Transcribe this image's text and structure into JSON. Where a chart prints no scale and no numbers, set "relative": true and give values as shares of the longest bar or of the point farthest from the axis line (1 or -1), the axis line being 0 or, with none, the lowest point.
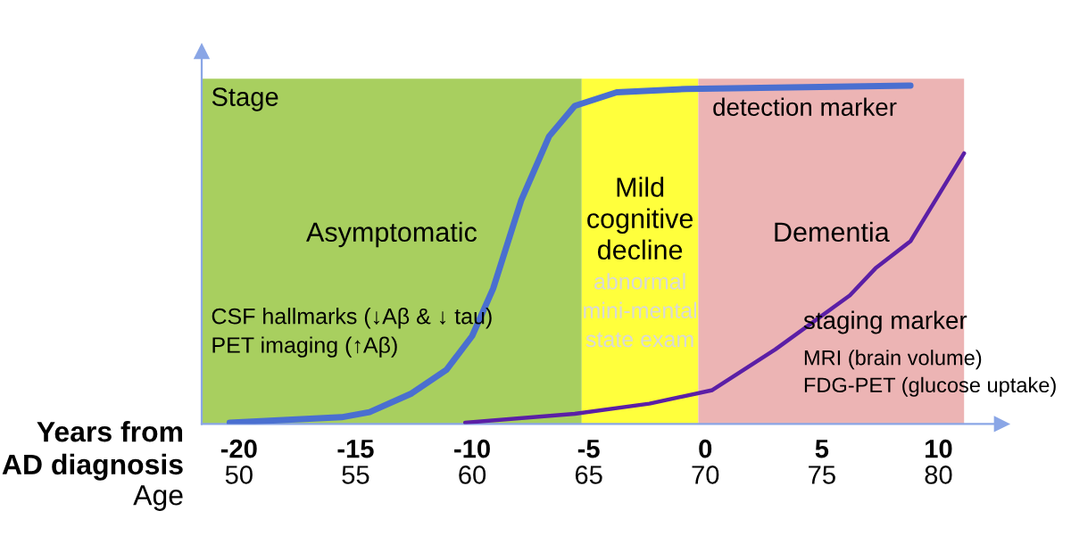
{
  "chart_data": {
    "type": "line",
    "relative": true,
    "ylabel": "Stage",
    "xlabel": "Years from\nAD diagnosis",
    "x2label": "Age",
    "xlim": [
      -21.6,
      12.7
    ],
    "xticks": [
      -20,
      -15,
      -10,
      -5,
      0,
      5,
      10
    ],
    "x2lim": [
      48.4,
      82.7
    ],
    "x2ticks": [
      50,
      55,
      60,
      65,
      70,
      75,
      80
    ],
    "bands": [
      {
        "axis": "x",
        "from": -21.6,
        "to": -5.3,
        "label": "Asymptomatic",
        "color": "#a8cf5f"
      },
      {
        "axis": "x",
        "from": -5.3,
        "to": -0.3,
        "label": "Mild\ncognitive\ndecline",
        "color": "#ffff3c"
      },
      {
        "axis": "x",
        "from": -0.3,
        "to": 11.1,
        "label": "Dementia",
        "color": "#ecb4b4"
      }
    ],
    "series": [
      {
        "name": "detection marker",
        "color": "#4a6fd0",
        "x": [
          -20.4,
          -15.6,
          -14.4,
          -12.6,
          -11.1,
          -10.0,
          -9.1,
          -7.9,
          -6.7,
          -5.6,
          -3.8,
          -0.8,
          8.8
        ],
        "values": [
          0.004,
          0.02,
          0.035,
          0.09,
          0.16,
          0.26,
          0.4,
          0.66,
          0.85,
          0.94,
          0.98,
          0.99,
          1.0
        ]
      },
      {
        "name": "staging marker",
        "color": "#5b1fa6",
        "x": [
          -10.3,
          -5.6,
          -2.4,
          0.3,
          3.0,
          6.2,
          7.3,
          8.8,
          11.1
        ],
        "values": [
          0.004,
          0.03,
          0.06,
          0.1,
          0.22,
          0.38,
          0.46,
          0.54,
          0.8
        ]
      }
    ],
    "annotations": [
      "CSF hallmarks (↓Aβ & ↓ tau)\nPET imaging (↑Aβ)",
      "abnormal\nmini-mental\nstate exam",
      "MRI (brain volume)\nFDG-PET (glucose uptake)"
    ],
    "grid": false,
    "legend": false,
    "marker": "none",
    "line_style": "solid"
  }
}
